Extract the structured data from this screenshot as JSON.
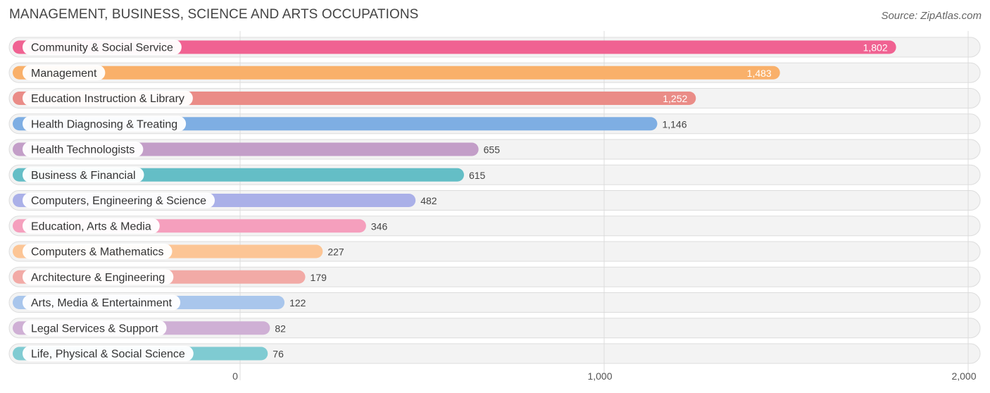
{
  "title": "MANAGEMENT, BUSINESS, SCIENCE AND ARTS OCCUPATIONS",
  "source": "Source: ZipAtlas.com",
  "chart_data": {
    "type": "bar",
    "orientation": "horizontal",
    "title": "MANAGEMENT, BUSINESS, SCIENCE AND ARTS OCCUPATIONS",
    "categories": [
      "Community & Social Service",
      "Management",
      "Education Instruction & Library",
      "Health Diagnosing & Treating",
      "Health Technologists",
      "Business & Financial",
      "Computers, Engineering & Science",
      "Education, Arts & Media",
      "Computers & Mathematics",
      "Architecture & Engineering",
      "Arts, Media & Entertainment",
      "Legal Services & Support",
      "Life, Physical & Social Science"
    ],
    "values": [
      1802,
      1483,
      1252,
      1146,
      655,
      615,
      482,
      346,
      227,
      179,
      122,
      82,
      76
    ],
    "value_labels": [
      "1,802",
      "1,483",
      "1,252",
      "1,146",
      "655",
      "615",
      "482",
      "346",
      "227",
      "179",
      "122",
      "82",
      "76"
    ],
    "colors": [
      "#f06292",
      "#f9b06a",
      "#ea8c87",
      "#7eaee3",
      "#c39ec8",
      "#64bec6",
      "#aab0e8",
      "#f59fbd",
      "#fcc595",
      "#f2aaa6",
      "#a9c6ec",
      "#cfb0d5",
      "#7fcbd2"
    ],
    "x_ticks": [
      0,
      1000,
      2000
    ],
    "x_tick_labels": [
      "0",
      "1,000",
      "2,000"
    ],
    "xlim": [
      0,
      2000
    ],
    "grid": true,
    "value_label_inside_threshold": 1200
  }
}
